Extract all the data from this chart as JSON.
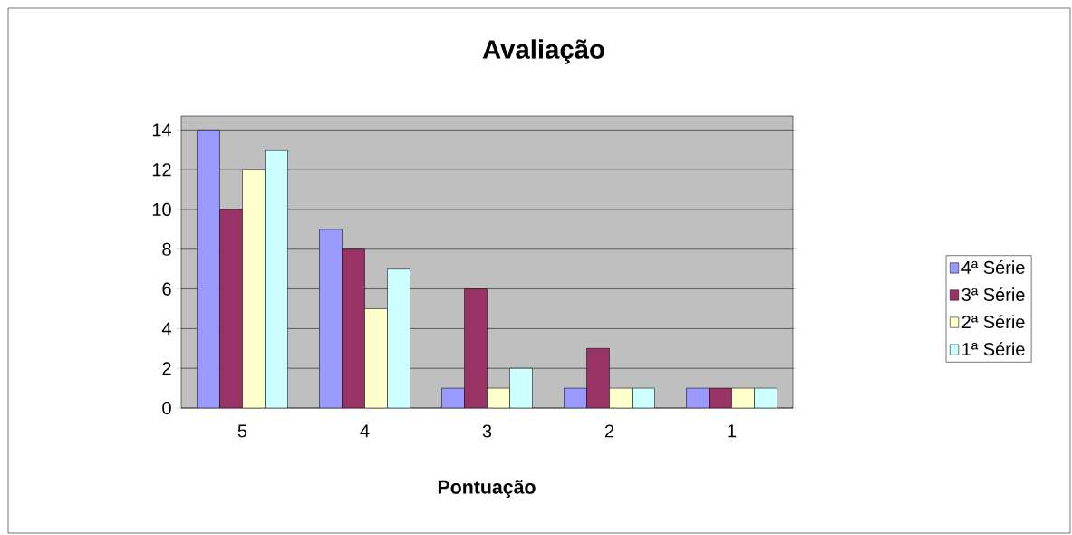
{
  "chart_data": {
    "type": "bar",
    "title": "Avaliação",
    "xlabel": "Pontuação",
    "categories": [
      "5",
      "4",
      "3",
      "2",
      "1"
    ],
    "series": [
      {
        "name": "4ª Série",
        "color": "#9999ff",
        "values": [
          14,
          9,
          1,
          1,
          1
        ]
      },
      {
        "name": "3ª Série",
        "color": "#993366",
        "values": [
          10,
          8,
          6,
          3,
          1
        ]
      },
      {
        "name": "2ª Série",
        "color": "#ffffcc",
        "values": [
          12,
          5,
          1,
          1,
          1
        ]
      },
      {
        "name": "1ª Série",
        "color": "#ccffff",
        "values": [
          13,
          7,
          2,
          1,
          1
        ]
      }
    ],
    "ylim": [
      0,
      14.7
    ],
    "yticks": [
      0,
      2,
      4,
      6,
      8,
      10,
      12,
      14
    ],
    "grid": "y",
    "legend": "right"
  }
}
